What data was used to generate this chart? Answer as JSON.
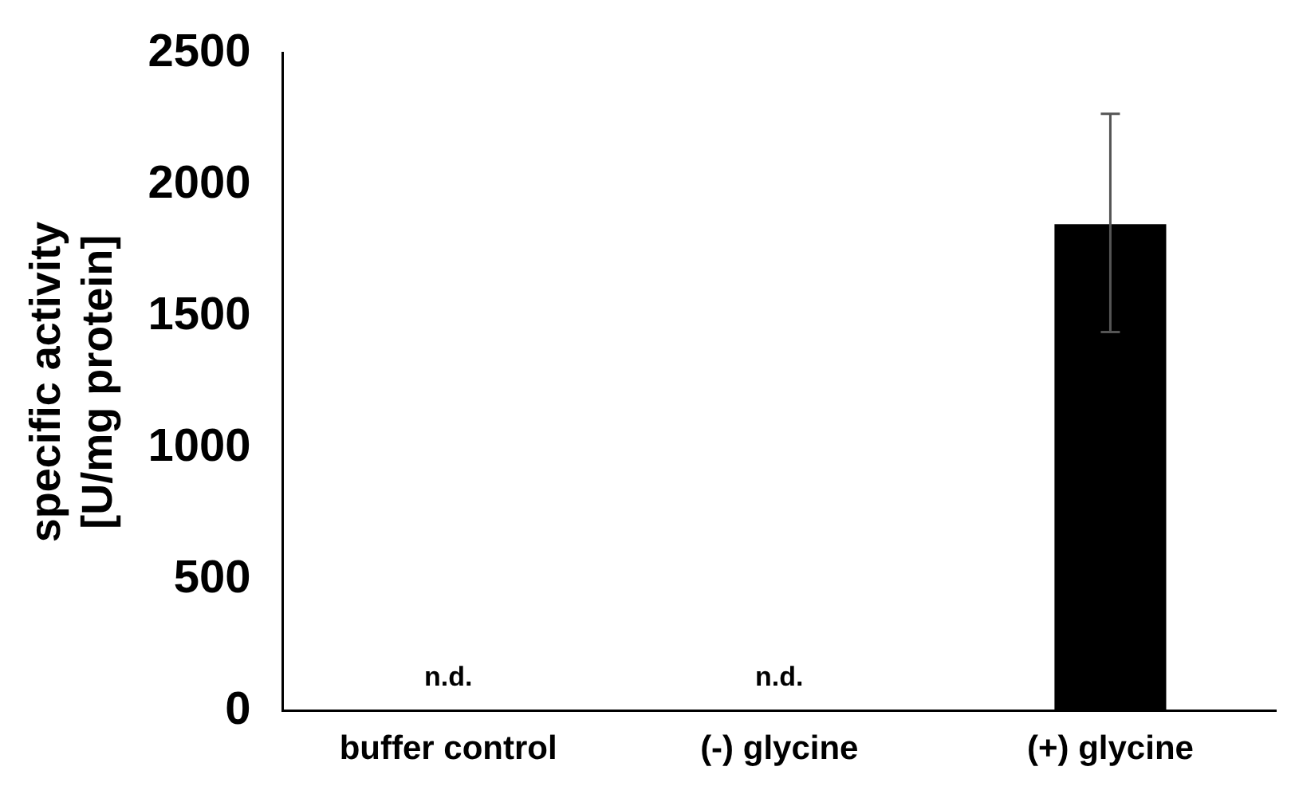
{
  "chart_data": {
    "type": "bar",
    "ylabel": "specific activity\n[U/mg protein]",
    "categories": [
      "buffer control",
      "(-) glycine",
      "(+) glycine"
    ],
    "values": [
      null,
      null,
      1850
    ],
    "value_labels": [
      "n.d.",
      "n.d.",
      null
    ],
    "errors": [
      null,
      null,
      [
        1440,
        2270
      ]
    ],
    "color": "#000000",
    "ylim": [
      0,
      2500
    ],
    "yticks": [
      0,
      500,
      1000,
      1500,
      2000,
      2500
    ],
    "grid": false,
    "legend": false
  }
}
